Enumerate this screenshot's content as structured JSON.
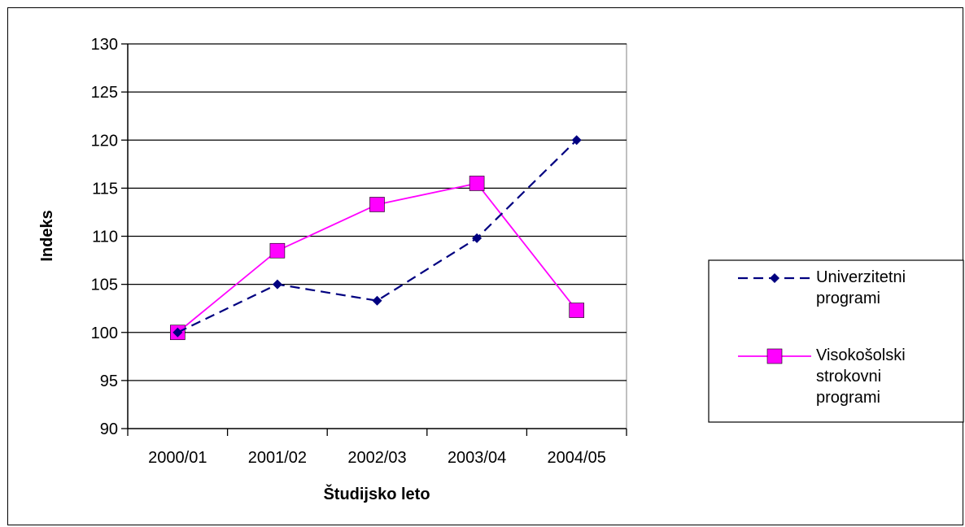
{
  "chart_data": {
    "type": "line",
    "title": "",
    "xlabel": "Študijsko leto",
    "ylabel": "Indeks",
    "categories": [
      "2000/01",
      "2001/02",
      "2002/03",
      "2003/04",
      "2004/05"
    ],
    "yticks": [
      "90",
      "95",
      "100",
      "105",
      "110",
      "115",
      "120",
      "125",
      "130"
    ],
    "ylim": [
      90,
      130
    ],
    "grid": true,
    "legend_position": "right",
    "series": [
      {
        "name": "Univerzitetni programi",
        "legend_lines": [
          "Univerzitetni",
          "programi"
        ],
        "values": [
          100,
          105,
          103.3,
          109.8,
          120
        ],
        "color": "#000080",
        "line_style": "dashed",
        "marker": "diamond"
      },
      {
        "name": "Visokošolski strokovni programi",
        "legend_lines": [
          "Visokošolski",
          "strokovni",
          "programi"
        ],
        "values": [
          100,
          108.5,
          113.3,
          115.5,
          102.3
        ],
        "color": "#ff00ff",
        "line_style": "solid",
        "marker": "square"
      }
    ]
  }
}
